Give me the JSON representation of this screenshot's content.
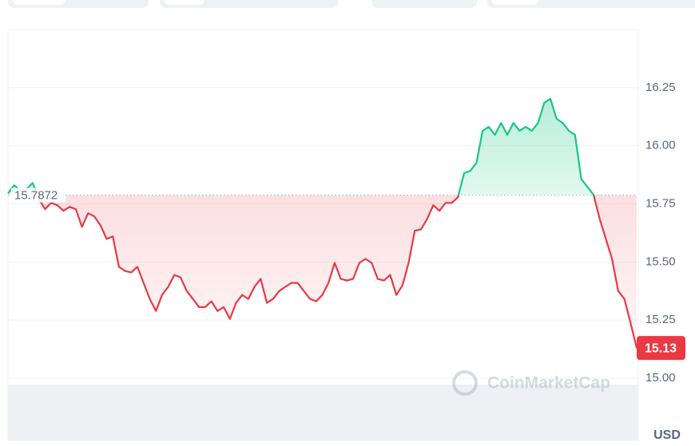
{
  "chart_data": {
    "type": "line",
    "values": [
      15.795,
      15.83,
      15.806,
      15.813,
      15.84,
      15.771,
      15.727,
      15.754,
      15.744,
      15.72,
      15.737,
      15.727,
      15.651,
      15.709,
      15.696,
      15.658,
      15.599,
      15.61,
      15.479,
      15.461,
      15.455,
      15.479,
      15.41,
      15.341,
      15.289,
      15.358,
      15.393,
      15.444,
      15.434,
      15.375,
      15.341,
      15.306,
      15.306,
      15.331,
      15.289,
      15.306,
      15.255,
      15.324,
      15.358,
      15.341,
      15.393,
      15.427,
      15.324,
      15.341,
      15.375,
      15.393,
      15.41,
      15.41,
      15.375,
      15.341,
      15.331,
      15.358,
      15.41,
      15.496,
      15.427,
      15.42,
      15.427,
      15.496,
      15.513,
      15.496,
      15.427,
      15.42,
      15.444,
      15.358,
      15.399,
      15.496,
      15.634,
      15.64,
      15.685,
      15.744,
      15.72,
      15.754,
      15.754,
      15.778,
      15.882,
      15.892,
      15.926,
      16.064,
      16.081,
      16.047,
      16.098,
      16.047,
      16.098,
      16.064,
      16.081,
      16.064,
      16.098,
      16.185,
      16.202,
      16.116,
      16.098,
      16.064,
      16.047,
      15.857,
      15.823,
      15.789,
      15.685,
      15.599,
      15.513,
      15.375,
      15.341,
      15.238,
      15.13
    ],
    "reference": 15.7872,
    "up_color": "#16c784",
    "down_color": "#ea3943",
    "ylim": [
      15.0,
      16.5
    ],
    "yticks": [
      {
        "value": 15,
        "label": "15.00"
      },
      15.25,
      {
        "value": 15.5,
        "label": "15.50"
      },
      15.75,
      {
        "value": 16,
        "label": "16.00"
      },
      16.25
    ],
    "grid": true,
    "watermark": "CoinMarketCap",
    "currency_label": "USD"
  }
}
